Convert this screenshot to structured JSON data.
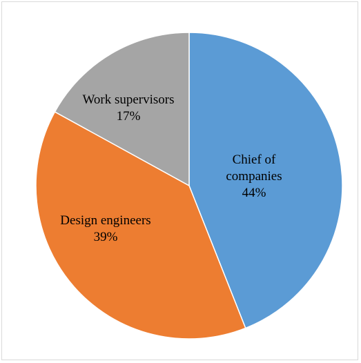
{
  "chart_data": {
    "type": "pie",
    "slices": [
      {
        "name": "Chief of companies",
        "label_lines": [
          "Chief of",
          "companies"
        ],
        "percent_label": "44%",
        "value": 44,
        "color": "#5b9bd5"
      },
      {
        "name": "Design engineers",
        "label_lines": [
          "Design engineers"
        ],
        "percent_label": "39%",
        "value": 39,
        "color": "#ed7d31"
      },
      {
        "name": "Work supervisors",
        "label_lines": [
          "Work supervisors"
        ],
        "percent_label": "17%",
        "value": 17,
        "color": "#a5a5a5"
      }
    ],
    "start": "12 o'clock",
    "direction": "clockwise",
    "legend": "none"
  }
}
